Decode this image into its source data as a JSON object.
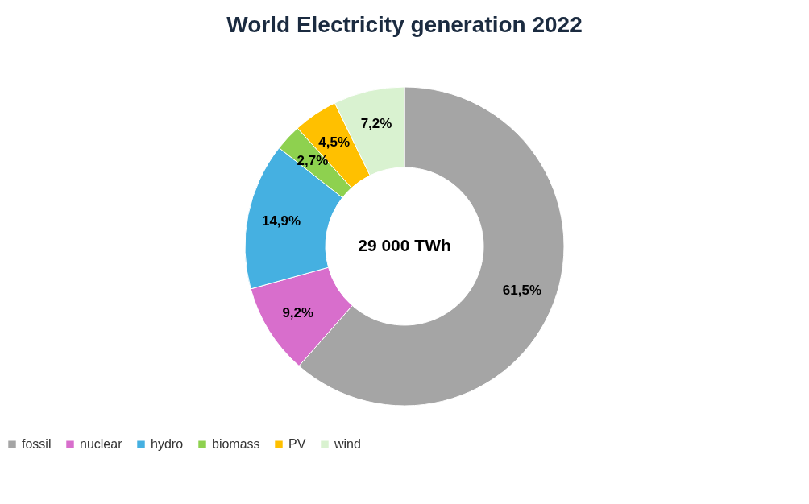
{
  "chart_data": {
    "type": "donut",
    "title": "World Electricity generation 2022",
    "categories": [
      "fossil",
      "nuclear",
      "hydro",
      "biomass",
      "PV",
      "wind"
    ],
    "values": [
      61.5,
      9.2,
      14.9,
      2.7,
      4.5,
      7.2
    ],
    "colors": [
      "#a5a5a5",
      "#d86ecc",
      "#45b0e1",
      "#8ed14f",
      "#ffc000",
      "#d9f2d0"
    ],
    "value_labels": [
      "61,5%",
      "9,2%",
      "14,9%",
      "2,7%",
      "4,5%",
      "7,2%"
    ],
    "annotations": [
      "29 000 TWh"
    ],
    "legend": "bottom"
  }
}
